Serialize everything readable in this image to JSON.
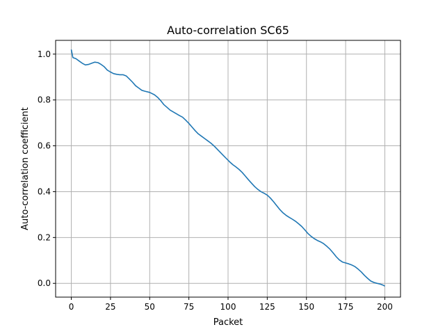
{
  "chart_data": {
    "type": "line",
    "title": "Auto-correlation SC65",
    "xlabel": "Packet",
    "ylabel": "Auto-correlation coefficient",
    "xlim": [
      -10,
      210
    ],
    "ylim": [
      -0.06,
      1.06
    ],
    "xticks": [
      0,
      25,
      50,
      75,
      100,
      125,
      150,
      175,
      200
    ],
    "yticks": [
      0.0,
      0.2,
      0.4,
      0.6,
      0.8,
      1.0
    ],
    "ytick_labels": [
      "0.0",
      "0.2",
      "0.4",
      "0.6",
      "0.8",
      "1.0"
    ],
    "grid": true,
    "series": [
      {
        "color": "#1f77b4",
        "x": [
          0,
          1,
          3,
          5,
          7,
          9,
          11,
          13,
          15,
          17,
          19,
          21,
          23,
          25,
          27,
          29,
          31,
          33,
          35,
          37,
          39,
          41,
          43,
          45,
          47,
          50,
          53,
          55,
          57,
          59,
          61,
          63,
          65,
          67,
          69,
          71,
          73,
          75,
          77,
          79,
          81,
          83,
          85,
          87,
          89,
          91,
          93,
          95,
          97,
          99,
          101,
          103,
          105,
          107,
          109,
          111,
          113,
          115,
          117,
          119,
          121,
          123,
          125,
          127,
          129,
          131,
          133,
          135,
          137,
          139,
          141,
          143,
          145,
          147,
          149,
          151,
          153,
          155,
          157,
          159,
          161,
          163,
          165,
          167,
          169,
          171,
          173,
          175,
          177,
          179,
          181,
          183,
          185,
          187,
          189,
          191,
          193,
          195,
          197,
          199,
          200
        ],
        "y": [
          1.02,
          0.985,
          0.98,
          0.97,
          0.96,
          0.953,
          0.955,
          0.96,
          0.965,
          0.963,
          0.955,
          0.945,
          0.93,
          0.922,
          0.915,
          0.912,
          0.91,
          0.91,
          0.905,
          0.892,
          0.878,
          0.862,
          0.852,
          0.842,
          0.838,
          0.833,
          0.823,
          0.812,
          0.797,
          0.78,
          0.768,
          0.756,
          0.748,
          0.74,
          0.732,
          0.725,
          0.712,
          0.698,
          0.682,
          0.666,
          0.652,
          0.642,
          0.632,
          0.622,
          0.612,
          0.6,
          0.586,
          0.572,
          0.558,
          0.544,
          0.53,
          0.518,
          0.508,
          0.497,
          0.484,
          0.468,
          0.452,
          0.437,
          0.422,
          0.41,
          0.4,
          0.393,
          0.385,
          0.372,
          0.356,
          0.339,
          0.322,
          0.308,
          0.297,
          0.288,
          0.28,
          0.271,
          0.26,
          0.248,
          0.233,
          0.217,
          0.205,
          0.195,
          0.187,
          0.181,
          0.173,
          0.162,
          0.149,
          0.133,
          0.116,
          0.102,
          0.093,
          0.089,
          0.085,
          0.08,
          0.073,
          0.062,
          0.05,
          0.035,
          0.022,
          0.01,
          0.004,
          0.0,
          -0.003,
          -0.008,
          -0.012
        ]
      }
    ]
  }
}
